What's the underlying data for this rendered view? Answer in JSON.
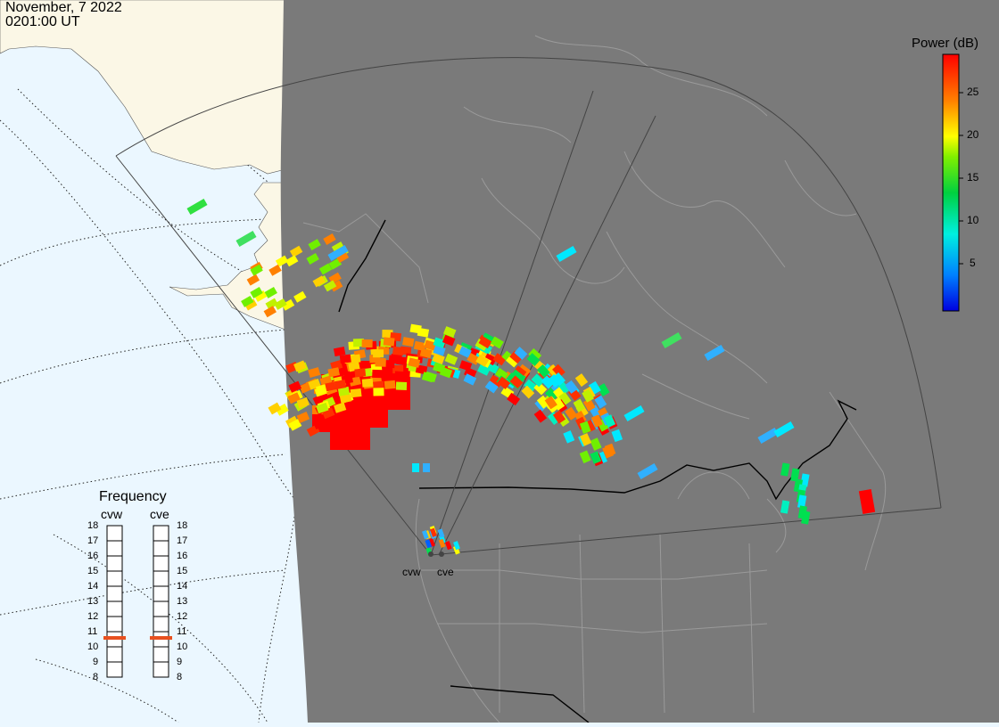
{
  "header": {
    "date": "November, 7 2022",
    "time": "0201:00 UT"
  },
  "colorbar": {
    "title": "Power (dB)",
    "ticks": [
      "25",
      "20",
      "15",
      "10",
      "5"
    ]
  },
  "frequency_panel": {
    "title": "Frequency",
    "radars": [
      {
        "label": "cvw",
        "frequency_mhz": 11
      },
      {
        "label": "cve",
        "frequency_mhz": 11
      }
    ],
    "scale": [
      "18",
      "17",
      "16",
      "15",
      "14",
      "13",
      "12",
      "11",
      "10",
      "9",
      "8"
    ],
    "marker_color": "#e8501f"
  },
  "sites": [
    {
      "label": "cvw"
    },
    {
      "label": "cve"
    }
  ],
  "colors": {
    "ocean": "#ebf7ff",
    "land_light": "#fbf7e6",
    "night_shade": "#7a7a7a",
    "fov_line": "#555555"
  }
}
